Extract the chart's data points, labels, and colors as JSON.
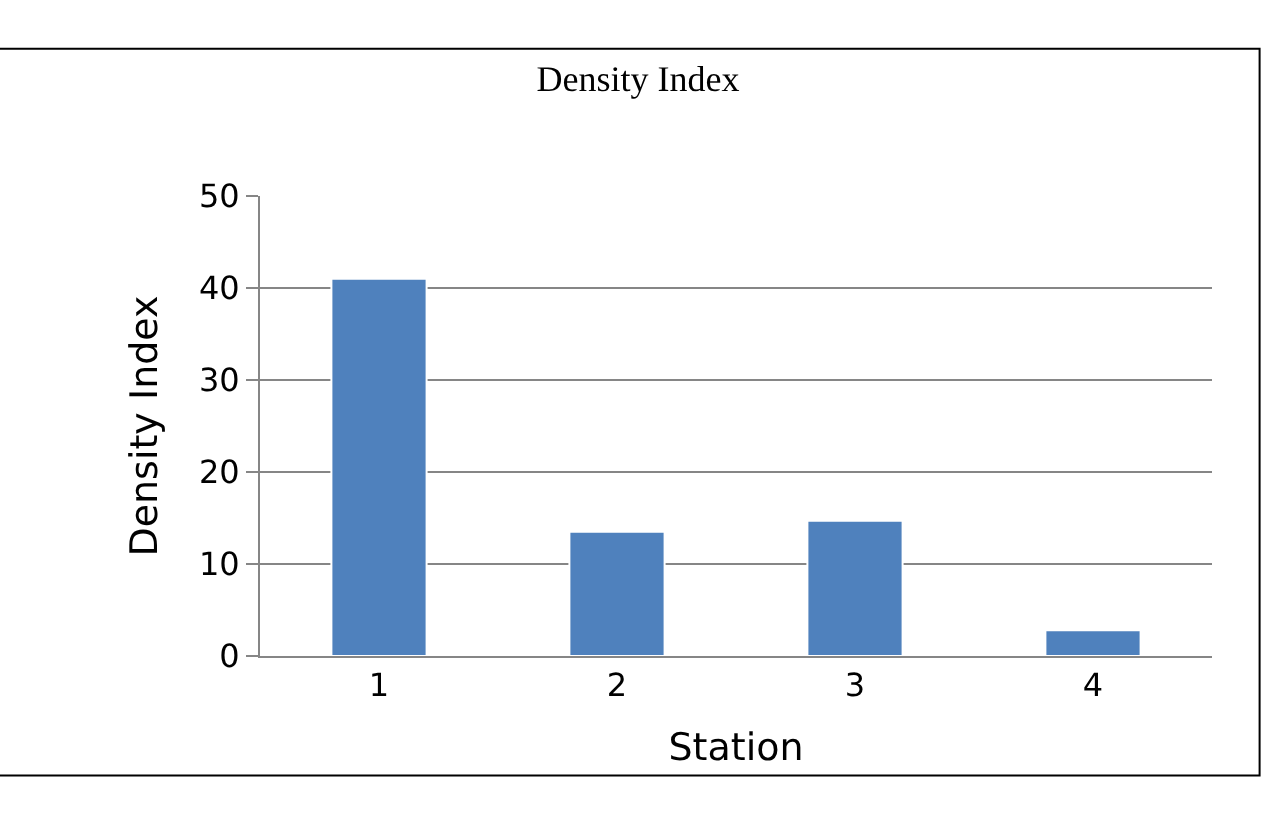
{
  "chart_data": {
    "type": "bar",
    "title": "Density Index",
    "xlabel": "Station",
    "ylabel": "Density Index",
    "categories": [
      "1",
      "2",
      "3",
      "4"
    ],
    "values": [
      41,
      13.5,
      14.7,
      2.8
    ],
    "color": "#4f81bd",
    "ylim": [
      0,
      50
    ],
    "yticks": [
      0,
      10,
      20,
      30,
      40,
      50
    ],
    "grid": "y",
    "legend": false
  }
}
